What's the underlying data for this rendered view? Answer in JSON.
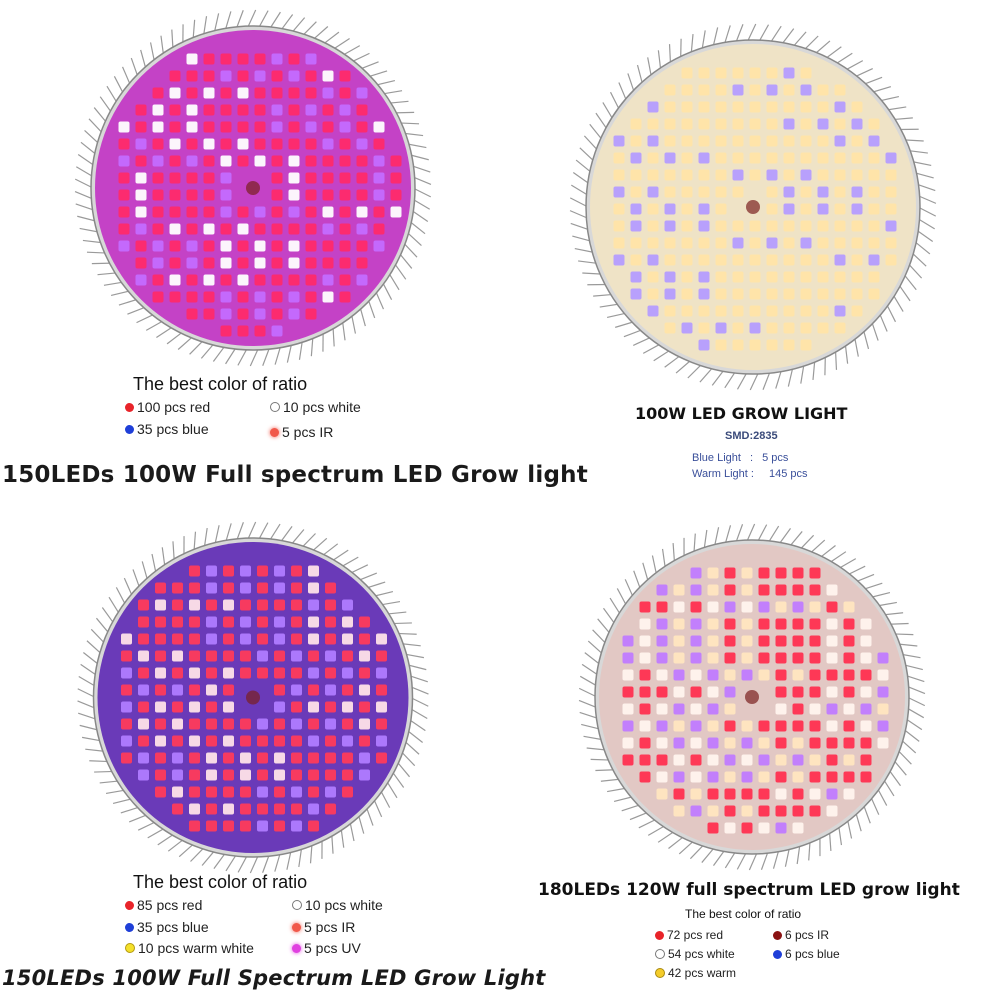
{
  "panels": {
    "top_left": {
      "ratio_title": "The best color of ratio",
      "legend": [
        {
          "text": "100 pcs red",
          "color": "#e8242a"
        },
        {
          "text": "10  pcs white",
          "color": "#ffffff"
        },
        {
          "text": "35 pcs blue",
          "color": "#1f3fd8"
        },
        {
          "text": "5  pcs IR",
          "color": "#f1584a"
        }
      ],
      "title": "150LEDs 100W Full spectrum LED Grow light",
      "board_color": "#c442c6",
      "led_colors": [
        "#ff2a6a",
        "#ff2a6a",
        "#ff2a6a",
        "#c46bff",
        "#ffffff"
      ]
    },
    "top_right": {
      "heading": "100W LED GROW LIGHT",
      "smd": "SMD:2835",
      "specs": [
        {
          "label": "Blue  Light",
          "sep": ":",
          "value": "5 pcs"
        },
        {
          "label": "Warm Light",
          "sep": ":",
          "value": "145 pcs"
        }
      ],
      "board_color": "#efe3c6",
      "led_colors": [
        "#ffe4a8",
        "#ffe4a8",
        "#ffe4a8",
        "#ffe4a8",
        "#b49cff"
      ]
    },
    "bottom_left": {
      "ratio_title": "The best color of ratio",
      "legend": [
        {
          "text": "85 pcs red",
          "color": "#e8242a"
        },
        {
          "text": "10  pcs white",
          "color": "#ffffff"
        },
        {
          "text": "35 pcs blue",
          "color": "#1f3fd8"
        },
        {
          "text": "5     pcs IR",
          "color": "#f1584a"
        },
        {
          "text": "10 pcs warm white",
          "color": "#f4e02a"
        },
        {
          "text": "5     pcs UV",
          "color": "#e040e0"
        }
      ],
      "title": "150LEDs 100W Full Spectrum LED Grow Light",
      "board_color": "#6a3ab8",
      "led_colors": [
        "#ff3a5a",
        "#ff3a5a",
        "#ff3a5a",
        "#b07bff",
        "#ffe2e8"
      ]
    },
    "bottom_right": {
      "title": "180LEDs 120W full spectrum LED grow light",
      "ratio_title": "The best color of ratio",
      "legend": [
        {
          "text": "72 pcs red",
          "color": "#e8242a"
        },
        {
          "text": "6 pcs IR",
          "color": "#8a1212"
        },
        {
          "text": "54 pcs white",
          "color": "#ffffff"
        },
        {
          "text": "6 pcs blue",
          "color": "#1f3fd8"
        },
        {
          "text": "42 pcs warm",
          "color": "#f4cc2a"
        }
      ],
      "board_color": "#e2c8c4",
      "led_colors": [
        "#ff3050",
        "#fff4ee",
        "#ffe6c0",
        "#ff3050",
        "#c07bff"
      ]
    }
  }
}
